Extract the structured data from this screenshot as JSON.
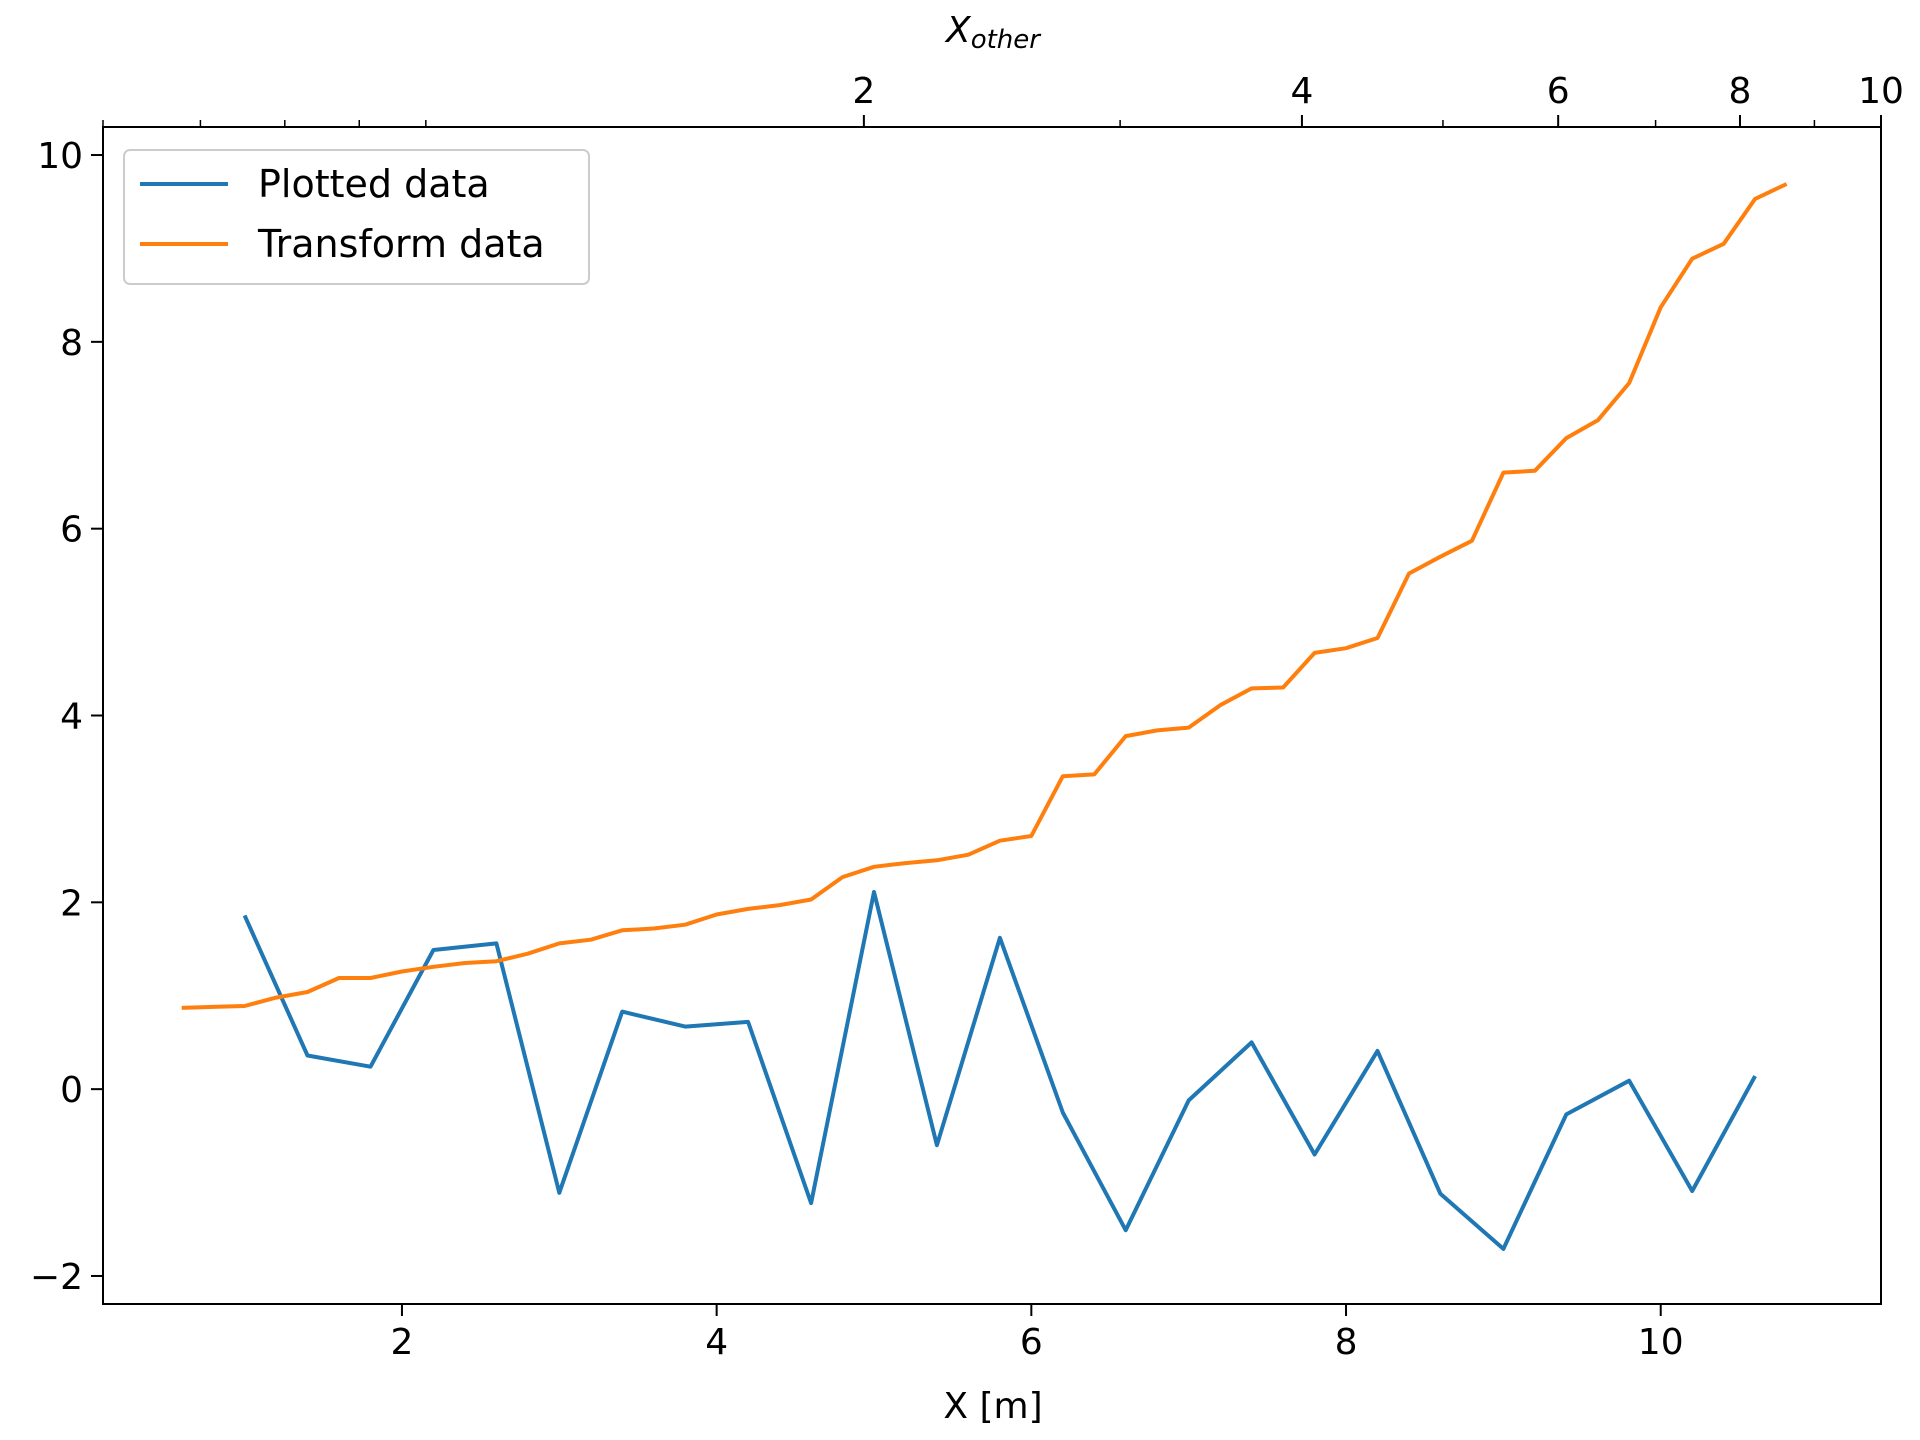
{
  "chart_data": {
    "type": "line",
    "xlabel": "X [m]",
    "top_xlabel": {
      "base": "X",
      "sub": "other"
    },
    "ylabel": "",
    "xlim": [
      0.1,
      11.4
    ],
    "ylim": [
      -2.3,
      10.3
    ],
    "xticks": [
      2,
      4,
      6,
      8,
      10
    ],
    "yticks": [
      -2,
      0,
      2,
      4,
      6,
      8,
      10
    ],
    "ytick_labels": [
      "−2",
      "0",
      "2",
      "4",
      "6",
      "8",
      "10"
    ],
    "top_axis": {
      "scale": "log",
      "lim": [
        0.6,
        10
      ],
      "major_ticks": [
        2,
        4,
        6,
        8,
        10
      ],
      "minor_ticks": [
        0.6,
        0.7,
        0.8,
        0.9,
        1,
        3,
        5,
        7,
        9
      ]
    },
    "grid": false,
    "legend": {
      "placement": "top-left"
    },
    "series": [
      {
        "name": "Plotted data",
        "color": "#1f77b4",
        "x": [
          1.0,
          1.4,
          1.8,
          2.2,
          2.6,
          3.0,
          3.4,
          3.8,
          4.2,
          4.6,
          5.0,
          5.4,
          5.8,
          6.2,
          6.6,
          7.0,
          7.4,
          7.8,
          8.2,
          8.6,
          9.0,
          9.4,
          9.8,
          10.2,
          10.6
        ],
        "y": [
          1.86,
          0.36,
          0.24,
          1.49,
          1.56,
          -1.11,
          0.83,
          0.67,
          0.72,
          -1.22,
          2.11,
          -0.6,
          1.62,
          -0.25,
          -1.51,
          -0.12,
          0.5,
          -0.7,
          0.41,
          -1.12,
          -1.71,
          -0.27,
          0.09,
          -1.09,
          0.14
        ]
      },
      {
        "name": "Transform data",
        "color": "#ff7f0e",
        "x": [
          0.6,
          0.8,
          1.0,
          1.2,
          1.4,
          1.6,
          1.8,
          2.0,
          2.2,
          2.4,
          2.6,
          2.8,
          3.0,
          3.2,
          3.4,
          3.6,
          3.8,
          4.0,
          4.2,
          4.4,
          4.6,
          4.8,
          5.0,
          5.2,
          5.4,
          5.6,
          5.8,
          6.0,
          6.2,
          6.4,
          6.6,
          6.8,
          7.0,
          7.2,
          7.4,
          7.6,
          7.8,
          8.0,
          8.2,
          8.4,
          8.6,
          8.8,
          9.0,
          9.2,
          9.4,
          9.6,
          9.8,
          10.0,
          10.2,
          10.4,
          10.6,
          10.8
        ],
        "y": [
          0.87,
          0.88,
          0.89,
          0.98,
          1.04,
          1.19,
          1.19,
          1.26,
          1.31,
          1.35,
          1.37,
          1.45,
          1.56,
          1.6,
          1.7,
          1.72,
          1.76,
          1.87,
          1.93,
          1.97,
          2.03,
          2.27,
          2.38,
          2.42,
          2.45,
          2.51,
          2.66,
          2.71,
          3.35,
          3.37,
          3.78,
          3.84,
          3.87,
          4.11,
          4.29,
          4.3,
          4.67,
          4.72,
          4.83,
          5.52,
          5.7,
          5.87,
          6.6,
          6.62,
          6.97,
          7.16,
          7.56,
          8.37,
          8.89,
          9.05,
          9.53,
          9.69
        ]
      }
    ]
  }
}
